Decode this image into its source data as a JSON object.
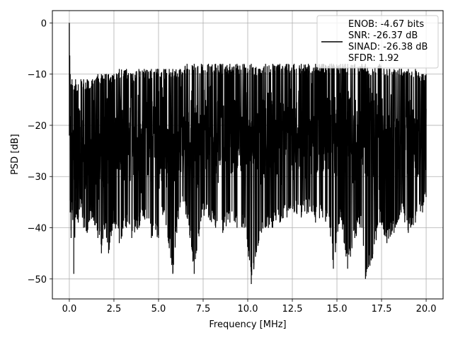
{
  "chart_data": {
    "type": "line",
    "title": "",
    "xlabel": "Frequency [MHz]",
    "ylabel": "PSD [dB]",
    "xlim": [
      -0.95,
      20.95
    ],
    "ylim": [
      -53.9,
      2.4
    ],
    "xticks": [
      0.0,
      2.5,
      5.0,
      7.5,
      10.0,
      12.5,
      15.0,
      17.5,
      20.0
    ],
    "xtick_labels": [
      "0.0",
      "2.5",
      "5.0",
      "7.5",
      "10.0",
      "12.5",
      "15.0",
      "17.5",
      "20.0"
    ],
    "yticks": [
      0,
      -10,
      -20,
      -30,
      -40,
      -50
    ],
    "ytick_labels": [
      "0",
      "−10",
      "−20",
      "−30",
      "−40",
      "−50"
    ],
    "grid": true,
    "legend_position": "top-right",
    "legend_lines": [
      "ENOB: -4.67 bits",
      "SNR: -26.37 dB",
      "SINAD: -26.38 dB",
      "SFDR: 1.92"
    ],
    "series_color": "#000000",
    "series": [
      {
        "x": [
          0.0,
          0.05,
          0.1,
          0.15,
          0.25,
          0.35,
          0.5,
          0.65,
          0.8,
          1.0,
          1.3,
          1.6,
          1.8,
          2.0,
          2.2,
          2.5,
          2.8,
          3.2,
          3.5,
          3.9,
          4.2,
          4.6,
          5.0,
          5.3,
          5.6,
          5.8,
          6.2,
          6.6,
          7.0,
          7.4,
          7.8,
          8.2,
          8.6,
          9.0,
          9.4,
          9.8,
          10.2,
          10.6,
          11.0,
          11.4,
          11.8,
          12.2,
          12.6,
          13.0,
          13.4,
          13.8,
          14.2,
          14.6,
          14.8,
          15.2,
          15.6,
          16.0,
          16.4,
          16.6,
          17.0,
          17.4,
          17.8,
          18.2,
          18.6,
          19.0,
          19.4,
          19.8,
          20.0
        ],
        "upper": [
          0.0,
          -10,
          -12,
          -11,
          -13,
          -11,
          -12,
          -11,
          -11,
          -11,
          -11,
          -10,
          -10,
          -10,
          -10,
          -10,
          -9,
          -9,
          -10,
          -9,
          -9,
          -9,
          -9,
          -9,
          -9,
          -9,
          -9,
          -8,
          -8,
          -8,
          -8,
          -8,
          -8,
          -8,
          -8,
          -8,
          -8,
          -9,
          -8,
          -8,
          -8,
          -8,
          -8,
          -8,
          -8,
          -8,
          -8,
          -8,
          -8,
          -8,
          -8,
          -8,
          -8,
          -8,
          -9,
          -8,
          -9,
          -9,
          -9,
          -9,
          -9,
          -10,
          -10
        ],
        "lower": [
          -22,
          -37,
          -42,
          -35,
          -49,
          -38,
          -39,
          -36,
          -40,
          -41,
          -38,
          -42,
          -45,
          -40,
          -45,
          -39,
          -43,
          -40,
          -42,
          -40,
          -38,
          -42,
          -42,
          -37,
          -44,
          -49,
          -36,
          -38,
          -49,
          -38,
          -38,
          -40,
          -41,
          -39,
          -40,
          -40,
          -51,
          -43,
          -40,
          -40,
          -39,
          -38,
          -37,
          -38,
          -37,
          -39,
          -38,
          -40,
          -48,
          -38,
          -48,
          -42,
          -40,
          -50,
          -46,
          -39,
          -43,
          -41,
          -37,
          -41,
          -39,
          -37,
          -34
        ]
      }
    ]
  }
}
